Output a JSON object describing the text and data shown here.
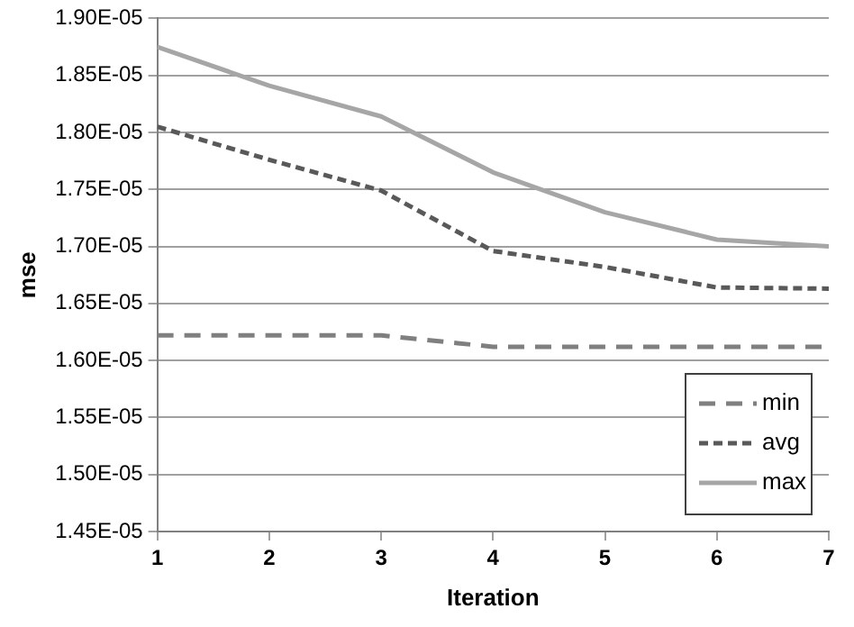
{
  "chart_data": {
    "type": "line",
    "xlabel": "Iteration",
    "ylabel": "mse",
    "x": [
      1,
      2,
      3,
      4,
      5,
      6,
      7
    ],
    "xlim": [
      1,
      7
    ],
    "xticks": [
      1,
      2,
      3,
      4,
      5,
      6,
      7
    ],
    "ylim": [
      1.45e-05,
      1.9e-05
    ],
    "yticks": [
      {
        "value": 1.45e-05,
        "label": "1.45E-05"
      },
      {
        "value": 1.5e-05,
        "label": "1.50E-05"
      },
      {
        "value": 1.55e-05,
        "label": "1.55E-05"
      },
      {
        "value": 1.6e-05,
        "label": "1.60E-05"
      },
      {
        "value": 1.65e-05,
        "label": "1.65E-05"
      },
      {
        "value": 1.7e-05,
        "label": "1.70E-05"
      },
      {
        "value": 1.75e-05,
        "label": "1.75E-05"
      },
      {
        "value": 1.8e-05,
        "label": "1.80E-05"
      },
      {
        "value": 1.85e-05,
        "label": "1.85E-05"
      },
      {
        "value": 1.9e-05,
        "label": "1.90E-05"
      }
    ],
    "grid": "y",
    "legend": "bottom right",
    "marker": "none",
    "series": [
      {
        "name": "min",
        "color": "#7f7f7f",
        "line_style": "dashed",
        "values": [
          1.622e-05,
          1.622e-05,
          1.622e-05,
          1.612e-05,
          1.612e-05,
          1.612e-05,
          1.612e-05
        ]
      },
      {
        "name": "avg",
        "color": "#595959",
        "line_style": "dotted",
        "values": [
          1.805e-05,
          1.776e-05,
          1.749e-05,
          1.696e-05,
          1.682e-05,
          1.664e-05,
          1.663e-05
        ]
      },
      {
        "name": "max",
        "color": "#a6a6a6",
        "line_style": "solid",
        "values": [
          1.875e-05,
          1.841e-05,
          1.814e-05,
          1.765e-05,
          1.73e-05,
          1.706e-05,
          1.7e-05
        ]
      }
    ]
  }
}
